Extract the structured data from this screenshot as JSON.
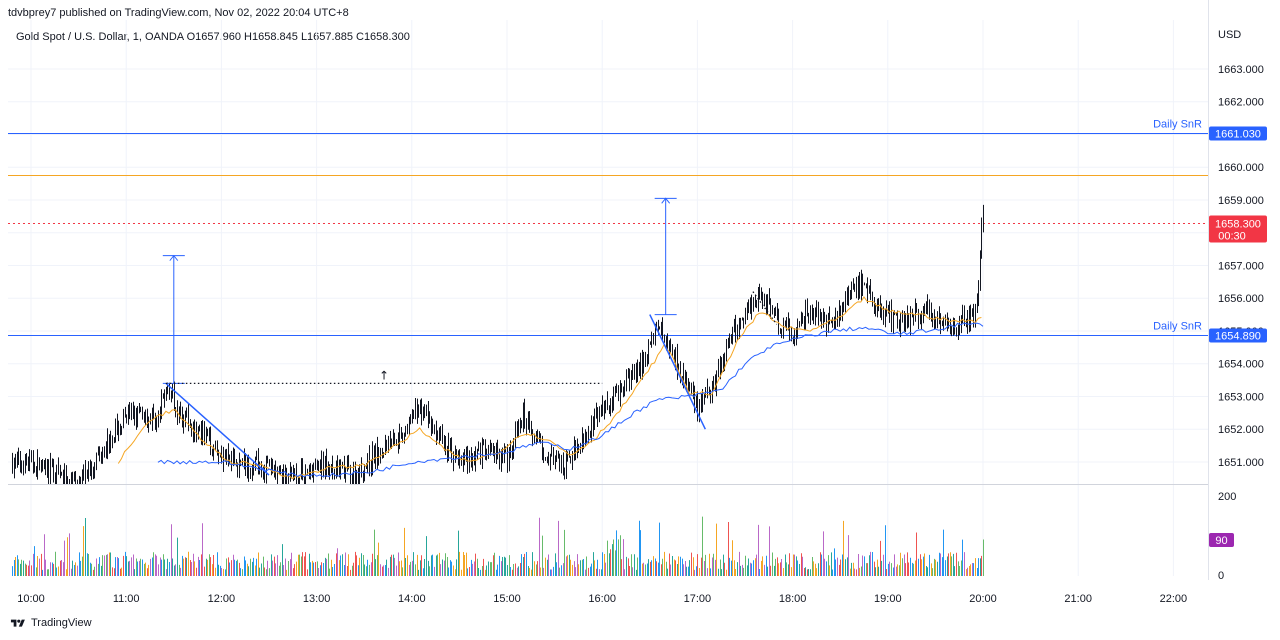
{
  "header": {
    "published": "tdvbprey7 published on TradingView.com, Nov 02, 2022 20:04 UTC+8",
    "symbol_line": "Gold Spot / U.S. Dollar, 1, OANDA  O1657.960  H1658.845  L1657.885  C1658.300"
  },
  "footer": {
    "brand": "TradingView"
  },
  "colors": {
    "up": "#26a69a",
    "down": "#ef5350",
    "candle": "#131722",
    "sma_fast": "#f5a623",
    "sma_slow": "#2962ff",
    "snr": "#2962ff",
    "orange_level": "#f5a623",
    "price_tag": "#f23645",
    "vol_tag": "#9c27b0"
  },
  "chart_data": {
    "type": "candlestick",
    "currency": "USD",
    "price_axis": {
      "min": 1650.6,
      "max": 1664.0,
      "ticks": [
        "1663.000",
        "1662.000",
        "1661.000",
        "1660.000",
        "1659.000",
        "1658.000",
        "1657.000",
        "1656.000",
        "1655.000",
        "1654.000",
        "1653.000",
        "1652.000",
        "1651.000"
      ]
    },
    "time_ticks": [
      "10:00",
      "11:00",
      "12:00",
      "13:00",
      "14:00",
      "15:00",
      "16:00",
      "17:00",
      "18:00",
      "19:00",
      "20:00",
      "21:00",
      "22:00"
    ],
    "volume_axis": {
      "max": 200,
      "ticks": [
        "200",
        "0"
      ]
    },
    "current_price": {
      "value": 1658.3,
      "label": "1658.300",
      "countdown": "00:30"
    },
    "current_volume": {
      "label": "90"
    },
    "levels": [
      {
        "price": 1661.03,
        "label": "1661.030",
        "text": "Daily SnR"
      },
      {
        "price": 1654.89,
        "label": "1654.890",
        "text": "Daily SnR"
      },
      {
        "price": 1659.75,
        "label": ""
      }
    ],
    "close_path_anchors": [
      [
        "10:00",
        1651.0
      ],
      [
        "10:30",
        1650.3
      ],
      [
        "10:50",
        1651.8
      ],
      [
        "11:05",
        1652.5
      ],
      [
        "11:20",
        1652.3
      ],
      [
        "11:25",
        1653.3
      ],
      [
        "11:35",
        1652.4
      ],
      [
        "11:50",
        1651.7
      ],
      [
        "12:05",
        1651.0
      ],
      [
        "12:25",
        1650.9
      ],
      [
        "12:45",
        1650.5
      ],
      [
        "13:05",
        1650.9
      ],
      [
        "13:25",
        1650.6
      ],
      [
        "13:40",
        1651.4
      ],
      [
        "13:55",
        1652.0
      ],
      [
        "14:05",
        1652.7
      ],
      [
        "14:15",
        1651.9
      ],
      [
        "14:30",
        1651.0
      ],
      [
        "14:45",
        1651.3
      ],
      [
        "15:00",
        1651.2
      ],
      [
        "15:10",
        1652.4
      ],
      [
        "15:25",
        1651.2
      ],
      [
        "15:35",
        1650.8
      ],
      [
        "15:45",
        1651.6
      ],
      [
        "16:00",
        1652.6
      ],
      [
        "16:15",
        1653.4
      ],
      [
        "16:25",
        1654.0
      ],
      [
        "16:35",
        1655.2
      ],
      [
        "16:45",
        1654.3
      ],
      [
        "17:00",
        1652.6
      ],
      [
        "17:10",
        1653.4
      ],
      [
        "17:20",
        1654.7
      ],
      [
        "17:30",
        1655.6
      ],
      [
        "17:40",
        1656.2
      ],
      [
        "17:50",
        1655.3
      ],
      [
        "18:00",
        1654.9
      ],
      [
        "18:10",
        1655.6
      ],
      [
        "18:25",
        1655.2
      ],
      [
        "18:40",
        1656.5
      ],
      [
        "18:55",
        1655.6
      ],
      [
        "19:10",
        1655.3
      ],
      [
        "19:25",
        1655.7
      ],
      [
        "19:40",
        1655.1
      ],
      [
        "19:55",
        1655.5
      ],
      [
        "20:00",
        1658.3
      ]
    ],
    "sma_fast_anchors": [
      [
        "10:55",
        1651.0
      ],
      [
        "11:15",
        1652.3
      ],
      [
        "11:30",
        1652.6
      ],
      [
        "11:45",
        1651.8
      ],
      [
        "12:05",
        1651.0
      ],
      [
        "12:25",
        1650.9
      ],
      [
        "12:45",
        1650.5
      ],
      [
        "13:05",
        1650.8
      ],
      [
        "13:30",
        1650.9
      ],
      [
        "13:50",
        1651.5
      ],
      [
        "14:05",
        1652.0
      ],
      [
        "14:20",
        1651.4
      ],
      [
        "14:35",
        1651.0
      ],
      [
        "14:55",
        1651.3
      ],
      [
        "15:10",
        1651.9
      ],
      [
        "15:25",
        1651.7
      ],
      [
        "15:40",
        1651.2
      ],
      [
        "15:55",
        1651.7
      ],
      [
        "16:10",
        1652.5
      ],
      [
        "16:25",
        1653.5
      ],
      [
        "16:40",
        1654.6
      ],
      [
        "16:55",
        1653.1
      ],
      [
        "17:10",
        1653.1
      ],
      [
        "17:25",
        1654.7
      ],
      [
        "17:40",
        1655.6
      ],
      [
        "17:55",
        1655.1
      ],
      [
        "18:10",
        1655.0
      ],
      [
        "18:30",
        1655.4
      ],
      [
        "18:45",
        1656.0
      ],
      [
        "19:00",
        1655.6
      ],
      [
        "19:20",
        1655.5
      ],
      [
        "19:40",
        1655.3
      ],
      [
        "19:55",
        1655.3
      ],
      [
        "20:00",
        1655.5
      ]
    ],
    "sma_slow_anchors": [
      [
        "11:20",
        1651.0
      ],
      [
        "11:40",
        1651.0
      ],
      [
        "12:00",
        1651.0
      ],
      [
        "12:25",
        1650.8
      ],
      [
        "12:45",
        1650.6
      ],
      [
        "13:10",
        1650.6
      ],
      [
        "13:35",
        1650.7
      ],
      [
        "14:00",
        1651.0
      ],
      [
        "14:20",
        1651.1
      ],
      [
        "14:40",
        1651.2
      ],
      [
        "15:00",
        1651.3
      ],
      [
        "15:20",
        1651.6
      ],
      [
        "15:40",
        1651.4
      ],
      [
        "16:00",
        1651.8
      ],
      [
        "16:20",
        1652.5
      ],
      [
        "16:35",
        1652.9
      ],
      [
        "16:55",
        1653.0
      ],
      [
        "17:15",
        1653.2
      ],
      [
        "17:30",
        1654.0
      ],
      [
        "17:45",
        1654.5
      ],
      [
        "18:05",
        1654.8
      ],
      [
        "18:25",
        1655.0
      ],
      [
        "18:45",
        1655.1
      ],
      [
        "19:05",
        1654.9
      ],
      [
        "19:25",
        1655.0
      ],
      [
        "19:45",
        1655.2
      ],
      [
        "20:00",
        1655.2
      ]
    ],
    "drawings": {
      "triangle_1": [
        [
          "11:25",
          1653.4
        ],
        [
          "12:30",
          1650.6
        ]
      ],
      "triangle_2": [
        [
          "16:30",
          1655.5
        ],
        [
          "17:05",
          1652.0
        ]
      ],
      "arrow_1": {
        "time": "11:30",
        "from": 1653.4,
        "to": 1657.3
      },
      "arrow_2": {
        "time": "16:40",
        "from": 1655.5,
        "to": 1659.05
      },
      "dotted_level": {
        "from": "11:25",
        "to": "16:00",
        "price": 1653.4,
        "marker": "↑"
      },
      "dotted_slope": {
        "from": "17:35",
        "to": "17:50",
        "prices": [
          1656.2,
          1655.2
        ]
      }
    }
  }
}
